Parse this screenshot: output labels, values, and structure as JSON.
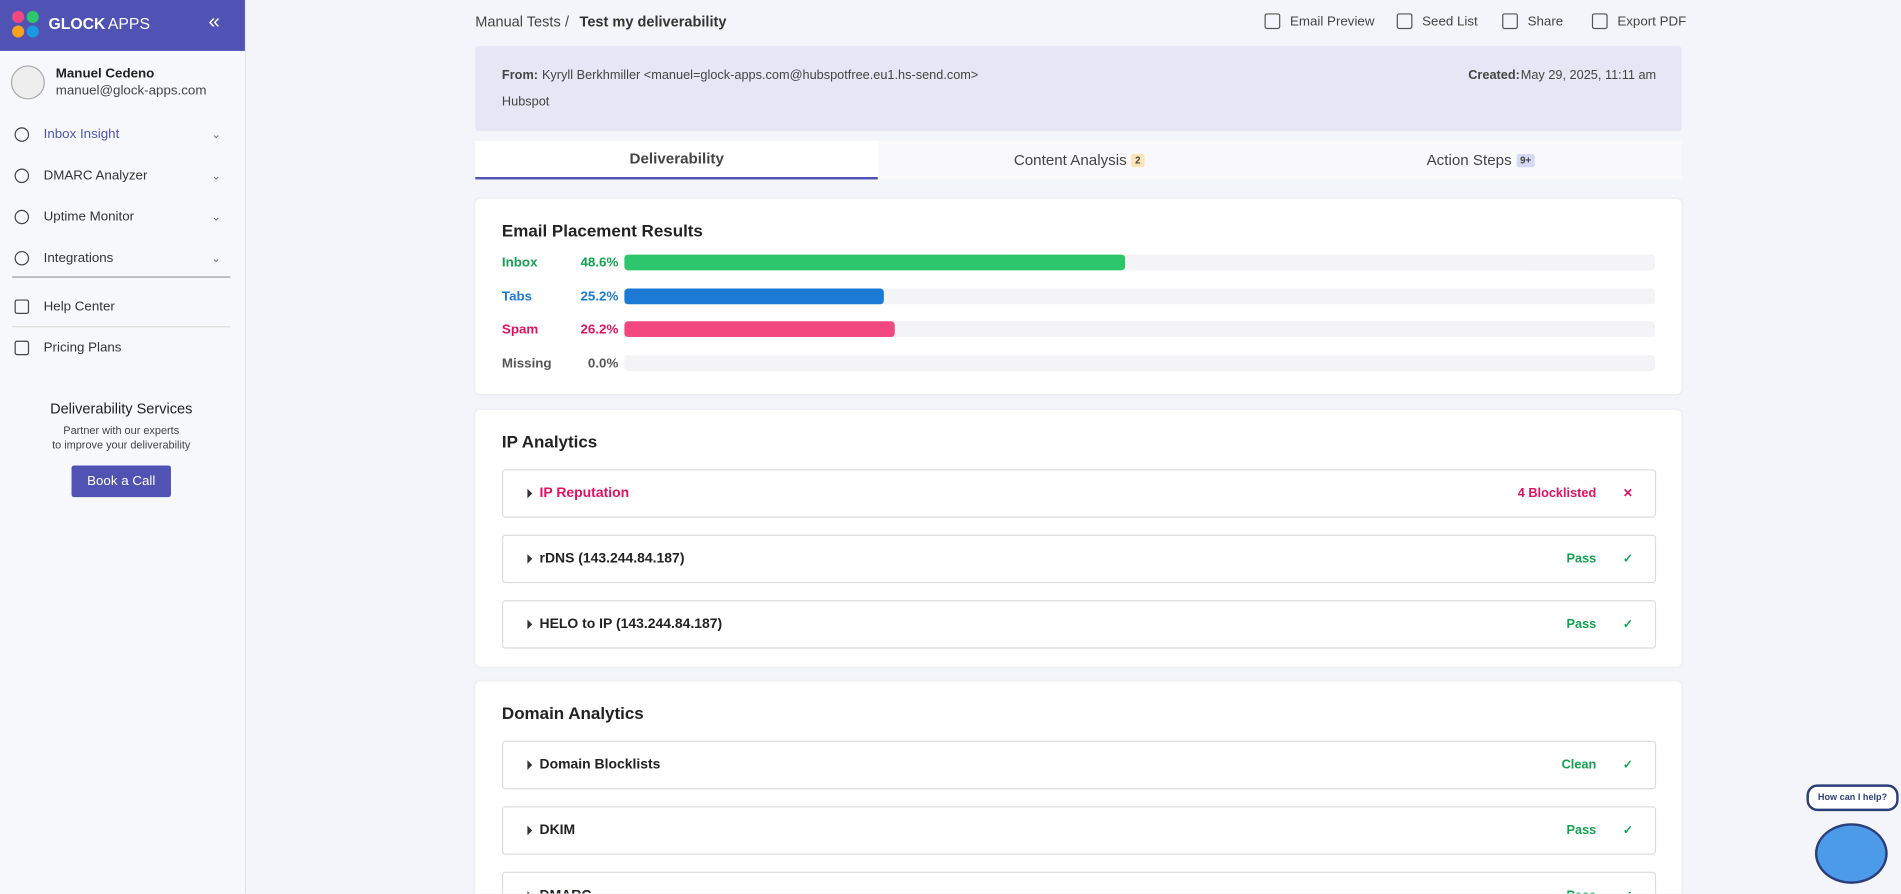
{
  "sidebar": {
    "brand": "GLOCK",
    "brand2": "APPS",
    "user_name": "Manuel Cedeno",
    "user_email": "manuel@glock-apps.com",
    "nav": [
      "Inbox Insight",
      "DMARC Analyzer",
      "Uptime Monitor",
      "Integrations"
    ],
    "links": [
      "Help Center",
      "Pricing Plans"
    ],
    "promo": {
      "title": "Deliverability Services",
      "text": [
        "Partner with our experts",
        "to improve your deliverability"
      ],
      "button": "Book a Call"
    }
  },
  "breadcrumb": [
    "Manual Tests",
    "/",
    "Test my deliverability"
  ],
  "toolbar": [
    "Email Preview",
    "Seed List",
    "Share",
    "Export PDF"
  ],
  "email": {
    "from_label": "From:",
    "from": "Kyryll Berkhmiller <manuel=glock-apps.com@hubspotfree.eu1.hs-send.com>",
    "company": "Hubspot",
    "created_label": "Created:",
    "created": "May 29, 2025, 11:11 am"
  },
  "tabs": [
    {
      "label": "Deliverability"
    },
    {
      "label": "Content Analysis",
      "badge": "2",
      "badge_color": "#fde3b5"
    },
    {
      "label": "Action Steps",
      "badge": "9+",
      "badge_color": "#d6d8f4"
    }
  ],
  "placement": {
    "title": "Email Placement Results",
    "rows": [
      {
        "name": "Inbox",
        "value": 48.6,
        "value_label": "48.6%",
        "color": "#2ec66b",
        "text_color": "#12a150"
      },
      {
        "name": "Tabs",
        "value": 25.2,
        "value_label": "25.2%",
        "color": "#1a7ad6",
        "text_color": "#1a7ad6"
      },
      {
        "name": "Spam",
        "value": 26.2,
        "value_label": "26.2%",
        "color": "#f2487f",
        "text_color": "#e0115f"
      },
      {
        "name": "Missing",
        "value": 0.0,
        "value_label": "0.0%",
        "color": "#999999",
        "text_color": "#555555"
      }
    ]
  },
  "ip": {
    "title": "IP Analytics",
    "items": [
      {
        "name": "IP Reputation",
        "status": "4 Blocklisted",
        "color": "#e0115f"
      },
      {
        "name": "rDNS (143.244.84.187)",
        "status": "Pass",
        "color": "#12a150"
      },
      {
        "name": "HELO to IP (143.244.84.187)",
        "status": "Pass",
        "color": "#12a150"
      }
    ]
  },
  "domain": {
    "title": "Domain Analytics",
    "items": [
      {
        "name": "Domain Blocklists",
        "status": "Clean",
        "color": "#12a150"
      },
      {
        "name": "DKIM",
        "status": "Pass",
        "color": "#12a150"
      },
      {
        "name": "DMARC",
        "status": "Pass",
        "color": "#12a150"
      }
    ]
  },
  "chat": "How can I help?"
}
